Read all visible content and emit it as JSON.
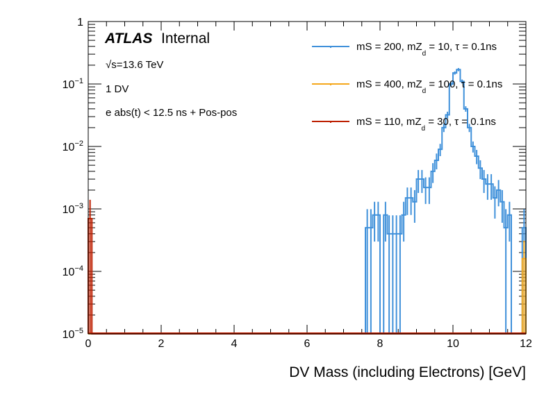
{
  "chart_data": {
    "type": "histogram",
    "title": "",
    "xlabel": "DV Mass (including Electrons) [GeV]",
    "ylabel": "",
    "xlim": [
      0,
      12
    ],
    "ylim": [
      1e-05,
      1
    ],
    "yscale": "log",
    "bin_width": 0.1,
    "x_ticks": [
      "0",
      "2",
      "4",
      "6",
      "8",
      "10",
      "12"
    ],
    "x_tick_values": [
      0,
      2,
      4,
      6,
      8,
      10,
      12
    ],
    "y_ticks": [
      {
        "value": 1,
        "base": "1",
        "exp": ""
      },
      {
        "value": 0.1,
        "base": "10",
        "exp": "−1"
      },
      {
        "value": 0.01,
        "base": "10",
        "exp": "−2"
      },
      {
        "value": 0.001,
        "base": "10",
        "exp": "−3"
      },
      {
        "value": 0.0001,
        "base": "10",
        "exp": "−4"
      },
      {
        "value": 1e-05,
        "base": "10",
        "exp": "−5"
      }
    ],
    "annotations": {
      "atlas": "ATLAS",
      "internal": "Internal",
      "energy": "√s=13.6 TeV",
      "selection1": "1 DV",
      "selection2": "e abs(t) < 12.5 ns + Pos-pos"
    },
    "legend_position": "top-right",
    "series": [
      {
        "name": "mS = 200, mZd = 10, τ = 0.1ns",
        "label_parts": [
          "mS = 200, mZ",
          "d",
          " = 10, τ = 0.1ns"
        ],
        "color": "#3f90da",
        "bins": [
          {
            "x": 7.6,
            "y": 0.0005,
            "err": 0.00049
          },
          {
            "x": 7.7,
            "y": 0.0005,
            "err": 0.00049
          },
          {
            "x": 7.8,
            "y": 0.0008,
            "err": 0.0005
          },
          {
            "x": 7.9,
            "y": 0.0008,
            "err": 0.0005
          },
          {
            "x": 8.0,
            "y": 1e-05,
            "err": 0
          },
          {
            "x": 8.1,
            "y": 0.0008,
            "err": 0.0005
          },
          {
            "x": 8.2,
            "y": 0.0004,
            "err": 0.00039
          },
          {
            "x": 8.3,
            "y": 0.0004,
            "err": 0.00039
          },
          {
            "x": 8.4,
            "y": 0.0004,
            "err": 0.00039
          },
          {
            "x": 8.5,
            "y": 0.0004,
            "err": 0.00039
          },
          {
            "x": 8.6,
            "y": 0.0008,
            "err": 0.0005
          },
          {
            "x": 8.7,
            "y": 0.0015,
            "err": 0.0007
          },
          {
            "x": 8.8,
            "y": 0.0015,
            "err": 0.0007
          },
          {
            "x": 8.9,
            "y": 0.0013,
            "err": 0.0007
          },
          {
            "x": 9.0,
            "y": 0.003,
            "err": 0.0012
          },
          {
            "x": 9.1,
            "y": 0.003,
            "err": 0.0012
          },
          {
            "x": 9.2,
            "y": 0.0022,
            "err": 0.001
          },
          {
            "x": 9.3,
            "y": 0.0022,
            "err": 0.001
          },
          {
            "x": 9.4,
            "y": 0.004,
            "err": 0.0014
          },
          {
            "x": 9.5,
            "y": 0.006,
            "err": 0.0017
          },
          {
            "x": 9.6,
            "y": 0.009,
            "err": 0.002
          },
          {
            "x": 9.7,
            "y": 0.02,
            "err": 0.003
          },
          {
            "x": 9.8,
            "y": 0.032,
            "err": 0.004
          },
          {
            "x": 9.9,
            "y": 0.1,
            "err": 0.007
          },
          {
            "x": 10.0,
            "y": 0.15,
            "err": 0.009
          },
          {
            "x": 10.1,
            "y": 0.17,
            "err": 0.01
          },
          {
            "x": 10.2,
            "y": 0.11,
            "err": 0.008
          },
          {
            "x": 10.3,
            "y": 0.04,
            "err": 0.004
          },
          {
            "x": 10.4,
            "y": 0.02,
            "err": 0.003
          },
          {
            "x": 10.5,
            "y": 0.01,
            "err": 0.002
          },
          {
            "x": 10.6,
            "y": 0.007,
            "err": 0.0018
          },
          {
            "x": 10.7,
            "y": 0.0045,
            "err": 0.0015
          },
          {
            "x": 10.8,
            "y": 0.003,
            "err": 0.0012
          },
          {
            "x": 10.9,
            "y": 0.0025,
            "err": 0.0011
          },
          {
            "x": 11.0,
            "y": 0.0025,
            "err": 0.0011
          },
          {
            "x": 11.1,
            "y": 0.0015,
            "err": 0.0008
          },
          {
            "x": 11.2,
            "y": 0.002,
            "err": 0.0009
          },
          {
            "x": 11.3,
            "y": 0.0013,
            "err": 0.0007
          },
          {
            "x": 11.4,
            "y": 0.0005,
            "err": 0.00049
          },
          {
            "x": 11.5,
            "y": 0.0008,
            "err": 0.0005
          },
          {
            "x": 11.6,
            "y": 1e-05,
            "err": 0
          },
          {
            "x": 11.7,
            "y": 1e-05,
            "err": 0
          },
          {
            "x": 11.8,
            "y": 1e-05,
            "err": 0
          },
          {
            "x": 11.9,
            "y": 0.0005,
            "err": 0.00049
          }
        ]
      },
      {
        "name": "mS = 400, mZd = 100, τ = 0.1ns",
        "label_parts": [
          "mS = 400, mZ",
          "d",
          " = 100, τ = 0.1ns"
        ],
        "color": "#f5a71a",
        "bins": [
          {
            "x": 11.9,
            "y": 0.00016,
            "err": 0.00015
          }
        ]
      },
      {
        "name": "mS = 110, mZd = 30, τ = 0.1ns",
        "label_parts": [
          "mS = 110, mZ",
          "d",
          " = 30, τ = 0.1ns"
        ],
        "color": "#bd1f01",
        "bins": [
          {
            "x": 0.0,
            "y": 0.0007,
            "err": 0.0007
          }
        ]
      }
    ]
  }
}
